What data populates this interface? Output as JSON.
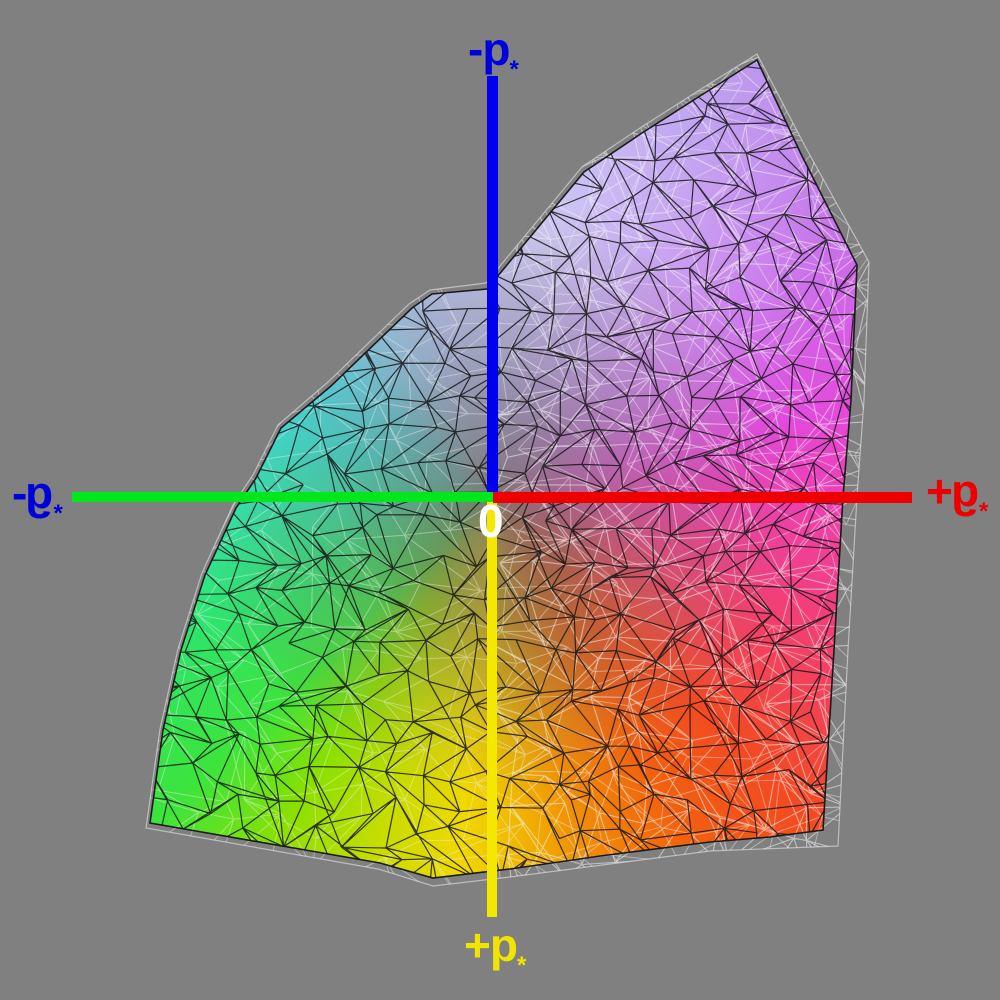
{
  "background_color": "#808080",
  "origin_marker": {
    "text": "0",
    "color": "#ffffff"
  },
  "axis_labels": {
    "up": {
      "sign": "-",
      "letter": "p",
      "sub": "*",
      "color": "#0000dd"
    },
    "down": {
      "sign": "+",
      "letter": "p",
      "sub": "*",
      "color": "#f0e400"
    },
    "left": {
      "sign": "-",
      "letter": "g",
      "sub": "*",
      "color": "#0000dd"
    },
    "right": {
      "sign": "+",
      "letter": "g",
      "sub": "*",
      "color": "#ee0000"
    }
  },
  "axis_lines": {
    "up_color": "#0000f0",
    "down_color": "#f5e800",
    "left_color": "#00e81c",
    "right_color": "#ee0000"
  },
  "gamut_colors": {
    "hue_stops": [
      [
        0,
        "#97a0ea"
      ],
      [
        28,
        "#a87fec"
      ],
      [
        55,
        "#c55fe8"
      ],
      [
        75,
        "#e149dc"
      ],
      [
        90,
        "#ee40b4"
      ],
      [
        110,
        "#f23f78"
      ],
      [
        124,
        "#f2444e"
      ],
      [
        135,
        "#f24a22"
      ],
      [
        150,
        "#f2600e"
      ],
      [
        165,
        "#f08d06"
      ],
      [
        175,
        "#f0b400"
      ],
      [
        185,
        "#f0d800"
      ],
      [
        198,
        "#c8dc00"
      ],
      [
        212,
        "#8ce000"
      ],
      [
        226,
        "#3ce43c"
      ],
      [
        245,
        "#2ee46a"
      ],
      [
        270,
        "#2ee8b4"
      ],
      [
        288,
        "#32e8dc"
      ],
      [
        310,
        "#48d8f0"
      ],
      [
        330,
        "#82c0f2"
      ],
      [
        345,
        "#95aaee"
      ],
      [
        360,
        "#97a0ea"
      ]
    ],
    "wireframe_black": "#151515",
    "wireframe_white": "#f4f4f4",
    "center_gray": "#7d756e",
    "back_surface_outline": "#bdbdbd",
    "silhouette_outline": "#1a1a1a"
  }
}
